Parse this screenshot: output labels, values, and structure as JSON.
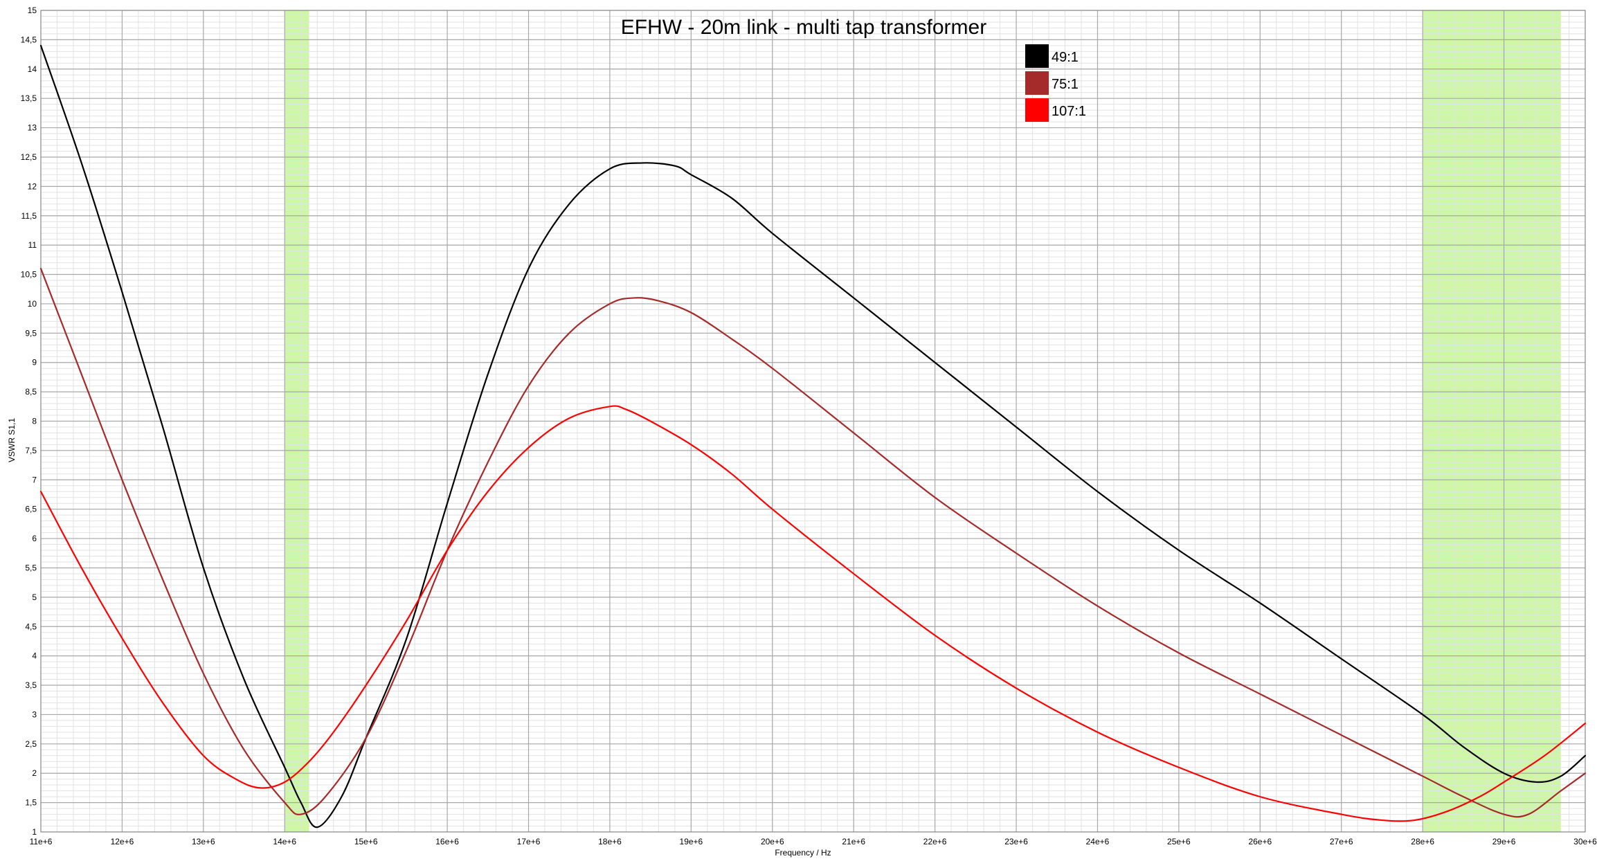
{
  "chart_data": {
    "type": "line",
    "title": "EFHW - 20m link - multi tap transformer",
    "xlabel": "Frequency / Hz",
    "ylabel": "VSWR S1,1",
    "xlim": [
      11000000,
      30000000
    ],
    "ylim": [
      1,
      15
    ],
    "x_ticks": [
      11000000,
      12000000,
      13000000,
      14000000,
      15000000,
      16000000,
      17000000,
      18000000,
      19000000,
      20000000,
      21000000,
      22000000,
      23000000,
      24000000,
      25000000,
      26000000,
      27000000,
      28000000,
      29000000,
      30000000
    ],
    "x_tick_labels": [
      "11e+6",
      "12e+6",
      "13e+6",
      "14e+6",
      "15e+6",
      "16e+6",
      "17e+6",
      "18e+6",
      "19e+6",
      "20e+6",
      "21e+6",
      "22e+6",
      "23e+6",
      "24e+6",
      "25e+6",
      "26e+6",
      "27e+6",
      "28e+6",
      "29e+6",
      "30e+6"
    ],
    "y_ticks": [
      1,
      1.5,
      2,
      2.5,
      3,
      3.5,
      4,
      4.5,
      5,
      5.5,
      6,
      6.5,
      7,
      7.5,
      8,
      8.5,
      9,
      9.5,
      10,
      10.5,
      11,
      11.5,
      12,
      12.5,
      13,
      13.5,
      14,
      14.5,
      15
    ],
    "y_tick_labels": [
      "1",
      "1,5",
      "2",
      "2,5",
      "3",
      "3,5",
      "4",
      "4,5",
      "5",
      "5,5",
      "6",
      "6,5",
      "7",
      "7,5",
      "8",
      "8,5",
      "9",
      "9,5",
      "10",
      "10,5",
      "11",
      "11,5",
      "12",
      "12,5",
      "13",
      "13,5",
      "14",
      "14,5",
      "15"
    ],
    "grid": true,
    "legend_position": "top-right",
    "highlight_bands": [
      {
        "x_start": 14000000,
        "x_end": 14300000,
        "color": "#c8f5a0"
      },
      {
        "x_start": 28000000,
        "x_end": 29700000,
        "color": "#c8f5a0"
      }
    ],
    "series": [
      {
        "name": "49:1",
        "color": "#000000",
        "x": [
          11000000,
          11500000,
          12000000,
          12500000,
          13000000,
          13500000,
          14000000,
          14200000,
          14400000,
          14700000,
          15000000,
          15500000,
          16000000,
          16500000,
          17000000,
          17500000,
          18000000,
          18400000,
          18800000,
          19000000,
          19500000,
          20000000,
          21000000,
          22000000,
          23000000,
          24000000,
          25000000,
          26000000,
          27000000,
          28000000,
          28500000,
          29000000,
          29400000,
          29700000,
          30000000
        ],
        "y": [
          14.4,
          12.4,
          10.2,
          7.9,
          5.5,
          3.6,
          2.1,
          1.5,
          1.08,
          1.6,
          2.6,
          4.3,
          6.6,
          8.8,
          10.6,
          11.7,
          12.3,
          12.4,
          12.35,
          12.2,
          11.8,
          11.2,
          10.1,
          9.0,
          7.9,
          6.8,
          5.8,
          4.9,
          3.95,
          3.0,
          2.45,
          2.0,
          1.85,
          1.95,
          2.3
        ]
      },
      {
        "name": "75:1",
        "color": "#a52a2a",
        "x": [
          11000000,
          11500000,
          12000000,
          12500000,
          13000000,
          13500000,
          14000000,
          14200000,
          14500000,
          15000000,
          15500000,
          16000000,
          16500000,
          17000000,
          17500000,
          18000000,
          18300000,
          18600000,
          19000000,
          19500000,
          20000000,
          21000000,
          22000000,
          23000000,
          24000000,
          25000000,
          26000000,
          27000000,
          28000000,
          28500000,
          29000000,
          29300000,
          29700000,
          30000000
        ],
        "y": [
          10.6,
          8.8,
          7.0,
          5.3,
          3.7,
          2.4,
          1.5,
          1.3,
          1.6,
          2.6,
          4.1,
          5.8,
          7.3,
          8.6,
          9.5,
          10.0,
          10.1,
          10.05,
          9.85,
          9.4,
          8.9,
          7.8,
          6.7,
          5.75,
          4.85,
          4.05,
          3.35,
          2.65,
          1.95,
          1.6,
          1.3,
          1.3,
          1.7,
          2.0
        ]
      },
      {
        "name": "107:1",
        "color": "#ff0000",
        "x": [
          11000000,
          11500000,
          12000000,
          12500000,
          13000000,
          13400000,
          13700000,
          14000000,
          14300000,
          14600000,
          15000000,
          15500000,
          16000000,
          16500000,
          17000000,
          17500000,
          18000000,
          18200000,
          18500000,
          19000000,
          19500000,
          20000000,
          21000000,
          22000000,
          23000000,
          24000000,
          25000000,
          26000000,
          27000000,
          27500000,
          27900000,
          28300000,
          28700000,
          29000000,
          29500000,
          30000000
        ],
        "y": [
          6.8,
          5.5,
          4.3,
          3.2,
          2.3,
          1.9,
          1.75,
          1.85,
          2.2,
          2.7,
          3.5,
          4.6,
          5.8,
          6.8,
          7.55,
          8.05,
          8.25,
          8.2,
          8.0,
          7.6,
          7.1,
          6.5,
          5.4,
          4.35,
          3.45,
          2.7,
          2.1,
          1.6,
          1.3,
          1.2,
          1.2,
          1.35,
          1.6,
          1.85,
          2.3,
          2.85
        ]
      }
    ]
  }
}
